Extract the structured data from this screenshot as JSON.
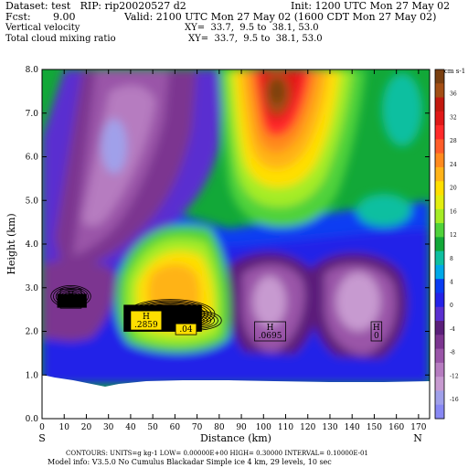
{
  "header": {
    "dataset": "Dataset: test   RIP: rip20020527 d2",
    "init": "Init: 1200 UTC Mon 27 May 02",
    "fcst": "Fcst:       9.00",
    "valid": "Valid: 2100 UTC Mon 27 May 02 (1600 CDT Mon 27 May 02)",
    "field1": "Vertical velocity",
    "xy1": "XY=  33.7,  9.5 to  38.1, 53.0",
    "field2": "Total cloud mixing ratio",
    "xy2": "XY=  33.7,  9.5 to  38.1, 53.0"
  },
  "footer": {
    "line1": "CONTOURS:  UNITS=g kg-1   LOW= 0.00000E+00  HIGH= 0.30000       INTERVAL=  0.10000E-01",
    "line2": "Model info: V3.5.0 No Cumulus Blackadar  Simple ice     4 km,   29 levels,   10 sec"
  },
  "chart_data": {
    "type": "heatmap",
    "xlabel": "Distance (km)",
    "ylabel": "Height (km)",
    "xlim": [
      0,
      175
    ],
    "ylim": [
      0,
      8
    ],
    "xticks": [
      "0",
      "10",
      "20",
      "30",
      "40",
      "50",
      "60",
      "70",
      "80",
      "90",
      "100",
      "110",
      "120",
      "130",
      "140",
      "150",
      "160",
      "170"
    ],
    "yticks": [
      "0.0",
      "1.0",
      "2.0",
      "3.0",
      "4.0",
      "5.0",
      "6.0",
      "7.0",
      "8.0"
    ],
    "x_end_labels": {
      "left": "S",
      "right": "N"
    },
    "colorbar": {
      "unit": "cm s-1",
      "labels": [
        "36",
        "32",
        "28",
        "24",
        "20",
        "16",
        "12",
        "8",
        "4",
        "0",
        "-4",
        "-8",
        "-12",
        "-16"
      ],
      "colors": [
        "#7a3f10",
        "#a34e14",
        "#c2190f",
        "#e01818",
        "#ff2a2a",
        "#ff5d2a",
        "#ff8a1e",
        "#ffb319",
        "#ffdf00",
        "#e2ee10",
        "#a5ec25",
        "#4fd23a",
        "#12a838",
        "#0fbfa0",
        "#00a8e8",
        "#0a3cf2",
        "#2422e8",
        "#5a2fd0",
        "#5b1f7a",
        "#7c3590",
        "#9a55a8",
        "#b67cc0",
        "#c79ad0",
        "#a0a0ea",
        "#8888f4"
      ]
    },
    "highs": [
      {
        "label": "H",
        "value": ".04",
        "x": 13,
        "y": 2.75
      },
      {
        "label": "H",
        "value": ".2859",
        "x": 47,
        "y": 2.25
      },
      {
        "label": "",
        "value": ".04",
        "x": 65,
        "y": 2.05
      },
      {
        "label": "H",
        "value": ".0695",
        "x": 103,
        "y": 2.0
      },
      {
        "label": "H",
        "value": "0",
        "x": 151,
        "y": 2.0
      }
    ]
  }
}
